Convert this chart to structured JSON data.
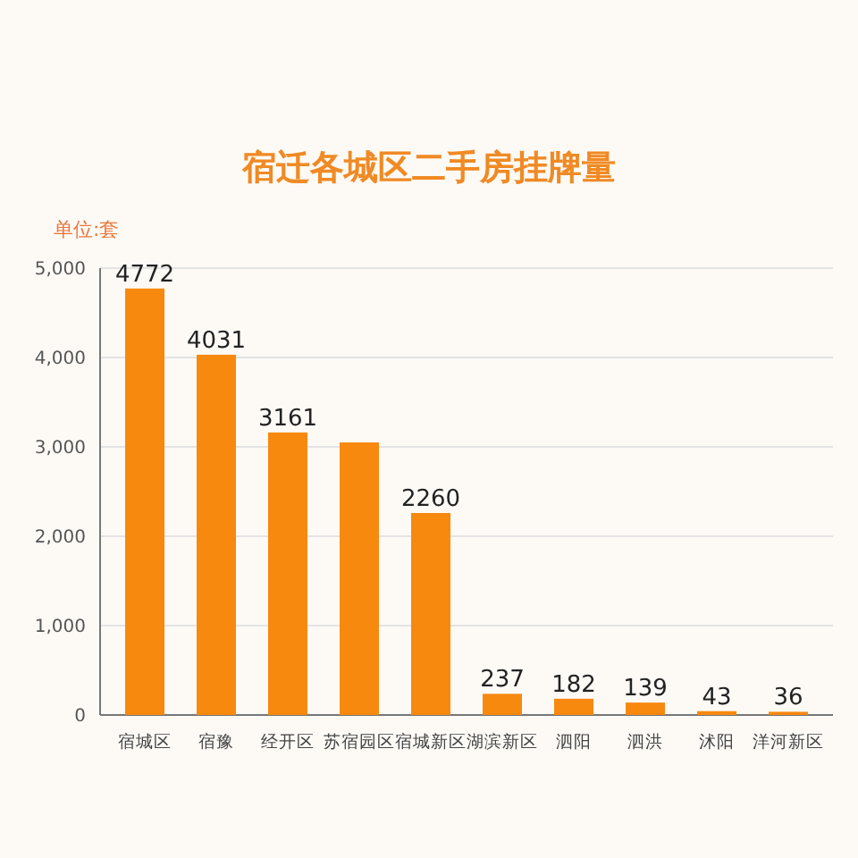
{
  "chart_data": {
    "type": "bar",
    "title": "宿迁各城区二手房挂牌量",
    "ylabel": "单位:套",
    "categories": [
      "宿城区",
      "宿豫",
      "经开区",
      "苏宿园区",
      "宿城新区",
      "湖滨新区",
      "泗阳",
      "泗洪",
      "沭阳",
      "洋河新区"
    ],
    "values": [
      4772,
      4031,
      3161,
      3050,
      2260,
      237,
      182,
      139,
      43,
      36
    ],
    "value_labels": [
      "4772",
      "4031",
      "3161",
      null,
      "2260",
      "237",
      "182",
      "139",
      "43",
      "36"
    ],
    "color": "#f7890f",
    "ylim": [
      0,
      5000
    ],
    "yticks": [
      {
        "value": 0,
        "label": "0"
      },
      {
        "value": 1000,
        "label": "1,000"
      },
      {
        "value": 2000,
        "label": "2,000"
      },
      {
        "value": 3000,
        "label": "3,000"
      },
      {
        "value": 4000,
        "label": "4,000"
      },
      {
        "value": 5000,
        "label": "5,000"
      }
    ],
    "grid": "y"
  }
}
